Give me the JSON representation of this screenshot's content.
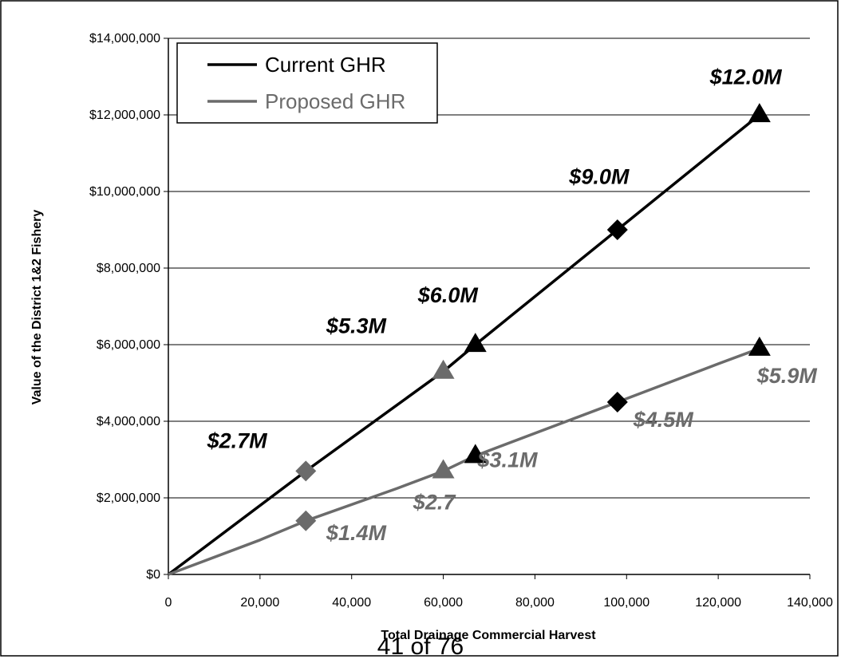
{
  "page": {
    "footer": "41 of 76"
  },
  "colors": {
    "current": "#000000",
    "proposed": "#6b6b6b",
    "grid": "#000000"
  },
  "chart_data": {
    "type": "line",
    "title": "",
    "xlabel": "Total Drainage Commercial Harvest",
    "ylabel": "Value of the District 1&2 Fishery",
    "xlim": [
      0,
      140000
    ],
    "ylim": [
      0,
      14000000
    ],
    "x_ticks": [
      {
        "value": 0,
        "label": "0"
      },
      {
        "value": 20000,
        "label": "20,000"
      },
      {
        "value": 40000,
        "label": "40,000"
      },
      {
        "value": 60000,
        "label": "60,000"
      },
      {
        "value": 80000,
        "label": "80,000"
      },
      {
        "value": 100000,
        "label": "100,000"
      },
      {
        "value": 120000,
        "label": "120,000"
      },
      {
        "value": 140000,
        "label": "140,000"
      }
    ],
    "y_ticks": [
      {
        "value": 0,
        "label": "$0"
      },
      {
        "value": 2000000,
        "label": "$2,000,000"
      },
      {
        "value": 4000000,
        "label": "$4,000,000"
      },
      {
        "value": 6000000,
        "label": "$6,000,000"
      },
      {
        "value": 8000000,
        "label": "$8,000,000"
      },
      {
        "value": 10000000,
        "label": "$10,000,000"
      },
      {
        "value": 12000000,
        "label": "$12,000,000"
      },
      {
        "value": 14000000,
        "label": "$14,000,000"
      }
    ],
    "grid": "horizontal",
    "legend": {
      "position": "top-left",
      "entries": [
        "Current GHR",
        "Proposed GHR"
      ]
    },
    "series": [
      {
        "name": "Current GHR",
        "color": "#000000",
        "points": [
          [
            0,
            0
          ],
          [
            30000,
            2700000
          ],
          [
            60000,
            5300000
          ],
          [
            67000,
            6000000
          ],
          [
            98000,
            9000000
          ],
          [
            129000,
            12000000
          ]
        ]
      },
      {
        "name": "Proposed GHR",
        "color": "#6b6b6b",
        "points": [
          [
            0,
            0
          ],
          [
            20000,
            900000
          ],
          [
            30000,
            1400000
          ],
          [
            50000,
            2250000
          ],
          [
            60000,
            2700000
          ],
          [
            67000,
            3100000
          ],
          [
            98000,
            4500000
          ],
          [
            120000,
            5500000
          ],
          [
            129000,
            5900000
          ]
        ]
      }
    ],
    "markers": [
      {
        "x": 30000,
        "y": 2700000,
        "shape": "diamond",
        "color": "#6b6b6b"
      },
      {
        "x": 60000,
        "y": 5300000,
        "shape": "triangle",
        "color": "#6b6b6b"
      },
      {
        "x": 67000,
        "y": 6000000,
        "shape": "triangle",
        "color": "#000000"
      },
      {
        "x": 98000,
        "y": 9000000,
        "shape": "diamond",
        "color": "#000000"
      },
      {
        "x": 129000,
        "y": 12000000,
        "shape": "triangle",
        "color": "#000000"
      },
      {
        "x": 30000,
        "y": 1400000,
        "shape": "diamond",
        "color": "#6b6b6b"
      },
      {
        "x": 60000,
        "y": 2700000,
        "shape": "triangle",
        "color": "#6b6b6b"
      },
      {
        "x": 67000,
        "y": 3100000,
        "shape": "triangle",
        "color": "#000000"
      },
      {
        "x": 98000,
        "y": 4500000,
        "shape": "diamond",
        "color": "#000000"
      },
      {
        "x": 129000,
        "y": 5900000,
        "shape": "triangle",
        "color": "#000000"
      }
    ],
    "annotations": [
      {
        "text": "$2.7M",
        "x": 15000,
        "y": 3300000,
        "color": "#000000"
      },
      {
        "text": "$5.3M",
        "x": 41000,
        "y": 6300000,
        "color": "#000000"
      },
      {
        "text": "$6.0M",
        "x": 61000,
        "y": 7100000,
        "color": "#000000"
      },
      {
        "text": "$9.0M",
        "x": 94000,
        "y": 10200000,
        "color": "#000000"
      },
      {
        "text": "$12.0M",
        "x": 126000,
        "y": 12800000,
        "color": "#000000"
      },
      {
        "text": "$1.4M",
        "x": 41000,
        "y": 900000,
        "color": "#6b6b6b"
      },
      {
        "text": "$2.7",
        "x": 58000,
        "y": 1700000,
        "color": "#6b6b6b"
      },
      {
        "text": "$3.1M",
        "x": 74000,
        "y": 2800000,
        "color": "#6b6b6b"
      },
      {
        "text": "$4.5M",
        "x": 108000,
        "y": 3850000,
        "color": "#6b6b6b"
      },
      {
        "text": "$5.9M",
        "x": 135000,
        "y": 5000000,
        "color": "#6b6b6b"
      }
    ]
  }
}
